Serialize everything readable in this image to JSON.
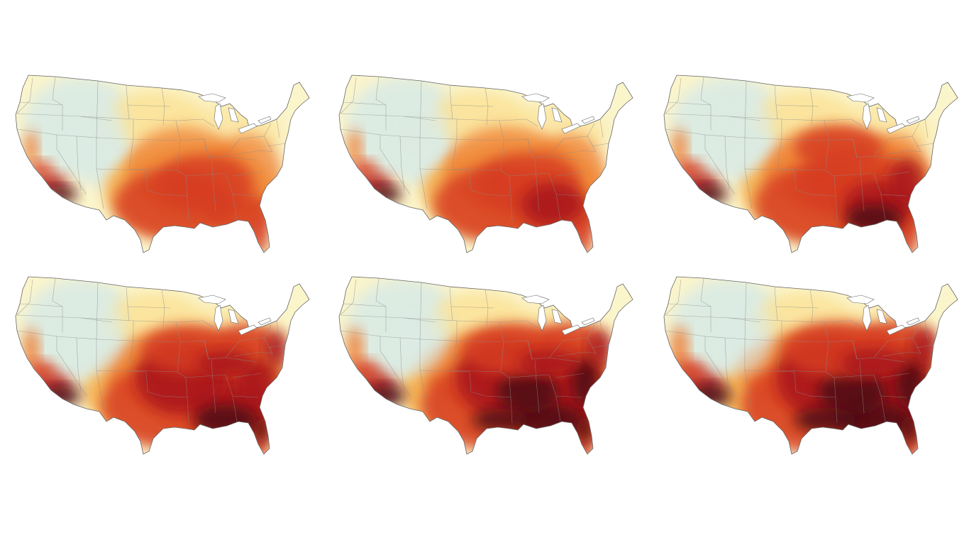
{
  "colors": {
    "cool": "#dcebe3",
    "pale": "#fbf5cc",
    "light": "#fbe39a",
    "mid": "#f6b252",
    "orange": "#ee7c30",
    "red": "#d63d22",
    "crimson": "#a8161d",
    "dark": "#4e1113",
    "state_line": "#8b8b8b",
    "coast_line": "#666666"
  },
  "maps": [
    {
      "name": "map-1",
      "intensity": 0.3
    },
    {
      "name": "map-2",
      "intensity": 0.42
    },
    {
      "name": "map-3",
      "intensity": 0.55
    },
    {
      "name": "map-4",
      "intensity": 0.72
    },
    {
      "name": "map-5",
      "intensity": 0.84
    },
    {
      "name": "map-6",
      "intensity": 1.0
    }
  ]
}
